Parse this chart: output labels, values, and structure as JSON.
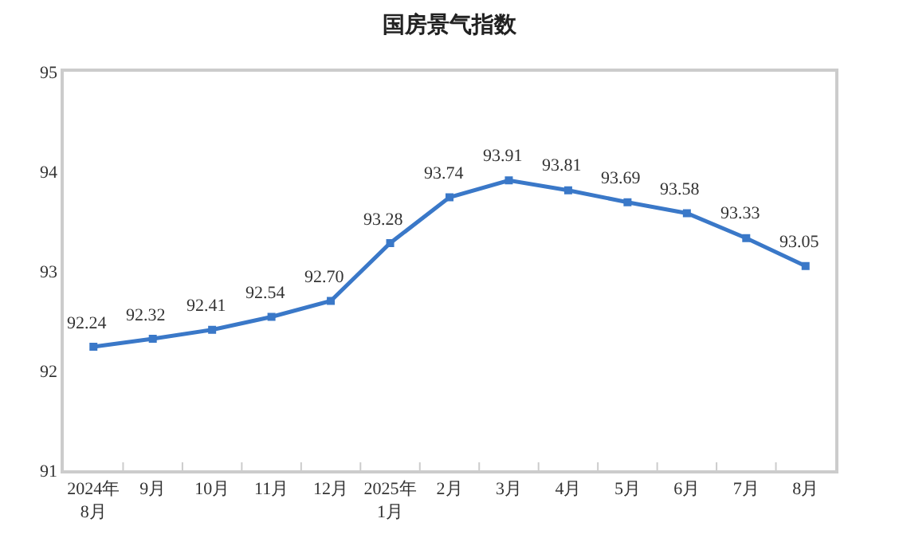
{
  "chart_data": {
    "type": "line",
    "title": "国房景气指数",
    "categories": [
      "2024年\n8月",
      "9月",
      "10月",
      "11月",
      "12月",
      "2025年\n1月",
      "2月",
      "3月",
      "4月",
      "5月",
      "6月",
      "7月",
      "8月"
    ],
    "series": [
      {
        "color": "#3a78c8",
        "values": [
          92.24,
          92.32,
          92.41,
          92.54,
          92.7,
          93.28,
          93.74,
          93.91,
          93.81,
          93.69,
          93.58,
          93.33,
          93.05
        ],
        "value_labels": [
          "92.24",
          "92.32",
          "92.41",
          "92.54",
          "92.70",
          "93.28",
          "93.74",
          "93.91",
          "93.81",
          "93.69",
          "93.58",
          "93.33",
          "93.05"
        ]
      }
    ],
    "ylim": [
      91,
      95
    ],
    "yticks": [
      91,
      92,
      93,
      94,
      95
    ],
    "marker": "square",
    "line_style": "solid"
  }
}
